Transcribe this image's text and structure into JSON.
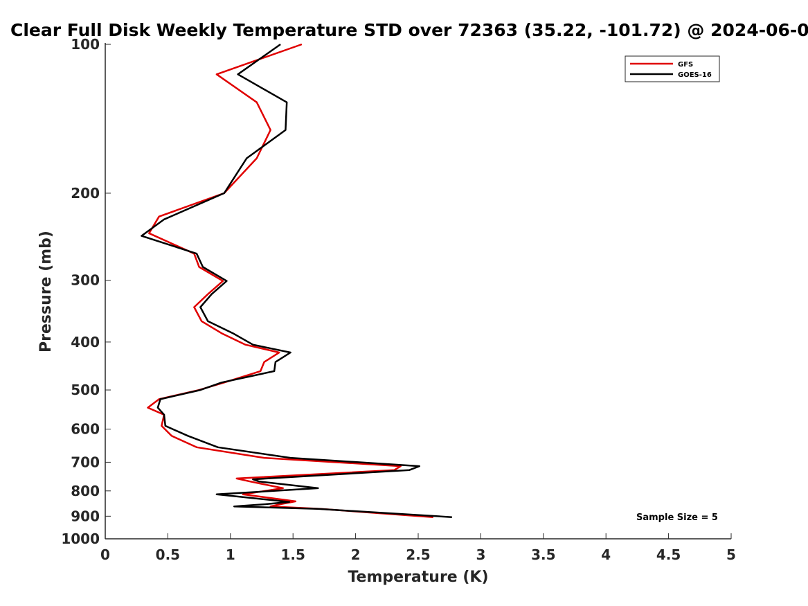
{
  "chart_data": {
    "type": "line",
    "title": "Clear Full Disk Weekly Temperature STD over 72363 (35.22, -101.72) @ 2024-06-0",
    "xlabel": "Temperature (K)",
    "ylabel": "Pressure (mb)",
    "xlim": [
      0,
      5
    ],
    "ylim": [
      1000,
      100
    ],
    "y_scale": "log",
    "x_ticks": [
      0,
      0.5,
      1,
      1.5,
      2,
      2.5,
      3,
      3.5,
      4,
      4.5,
      5
    ],
    "x_tick_labels": [
      "0",
      "0.5",
      "1",
      "1.5",
      "2",
      "2.5",
      "3",
      "3.5",
      "4",
      "4.5",
      "5"
    ],
    "y_ticks": [
      100,
      200,
      300,
      400,
      500,
      600,
      700,
      800,
      900,
      1000
    ],
    "y_tick_labels": [
      "100",
      "200",
      "300",
      "400",
      "500",
      "600",
      "700",
      "800",
      "900",
      "1000"
    ],
    "legend_position": "top-right",
    "annotation": "Sample Size = 5",
    "series": [
      {
        "name": "GFS",
        "color": "#e00000",
        "points": [
          [
            1.57,
            100
          ],
          [
            0.89,
            115
          ],
          [
            1.21,
            131
          ],
          [
            1.32,
            149
          ],
          [
            1.21,
            170
          ],
          [
            0.95,
            200
          ],
          [
            0.43,
            223
          ],
          [
            0.35,
            241
          ],
          [
            0.71,
            265
          ],
          [
            0.75,
            282
          ],
          [
            0.94,
            301
          ],
          [
            0.82,
            320
          ],
          [
            0.71,
            340
          ],
          [
            0.77,
            363
          ],
          [
            0.93,
            384
          ],
          [
            1.12,
            405
          ],
          [
            1.39,
            420
          ],
          [
            1.27,
            439
          ],
          [
            1.24,
            458
          ],
          [
            0.95,
            483
          ],
          [
            0.75,
            500
          ],
          [
            0.43,
            522
          ],
          [
            0.34,
            543
          ],
          [
            0.47,
            561
          ],
          [
            0.45,
            591
          ],
          [
            0.53,
            619
          ],
          [
            0.73,
            653
          ],
          [
            1.27,
            686
          ],
          [
            2.36,
            713
          ],
          [
            2.31,
            726
          ],
          [
            1.05,
            755
          ],
          [
            1.16,
            766
          ],
          [
            1.42,
            790
          ],
          [
            1.1,
            813
          ],
          [
            1.52,
            840
          ],
          [
            1.4,
            851
          ],
          [
            1.32,
            860
          ],
          [
            1.72,
            870
          ],
          [
            2.62,
            904
          ]
        ]
      },
      {
        "name": "GOES-16",
        "color": "#000000",
        "points": [
          [
            1.4,
            100
          ],
          [
            1.06,
            115
          ],
          [
            1.45,
            131
          ],
          [
            1.44,
            149
          ],
          [
            1.13,
            170
          ],
          [
            0.95,
            200
          ],
          [
            0.47,
            226
          ],
          [
            0.29,
            244
          ],
          [
            0.73,
            265
          ],
          [
            0.78,
            282
          ],
          [
            0.97,
            301
          ],
          [
            0.85,
            320
          ],
          [
            0.76,
            340
          ],
          [
            0.82,
            363
          ],
          [
            1.02,
            384
          ],
          [
            1.18,
            405
          ],
          [
            1.48,
            420
          ],
          [
            1.36,
            439
          ],
          [
            1.35,
            458
          ],
          [
            0.93,
            483
          ],
          [
            0.76,
            500
          ],
          [
            0.44,
            522
          ],
          [
            0.42,
            543
          ],
          [
            0.47,
            561
          ],
          [
            0.48,
            591
          ],
          [
            0.66,
            619
          ],
          [
            0.9,
            653
          ],
          [
            1.48,
            686
          ],
          [
            2.51,
            713
          ],
          [
            2.43,
            726
          ],
          [
            1.18,
            758
          ],
          [
            1.23,
            766
          ],
          [
            1.7,
            790
          ],
          [
            0.89,
            813
          ],
          [
            1.47,
            842
          ],
          [
            1.28,
            851
          ],
          [
            1.03,
            860
          ],
          [
            1.7,
            870
          ],
          [
            2.77,
            904
          ]
        ]
      }
    ]
  }
}
